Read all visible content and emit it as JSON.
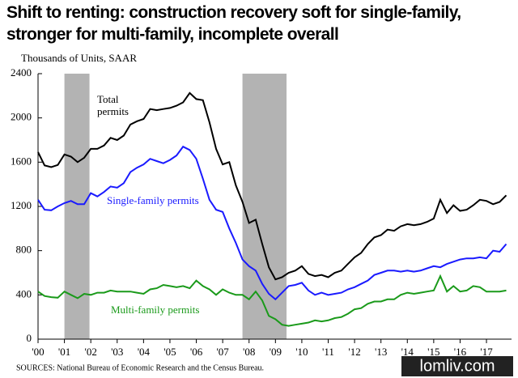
{
  "chart_data": {
    "type": "line",
    "title": "Shift to renting: construction recovery soft for single-family, stronger for multi-family, incomplete overall",
    "subtitle": "Thousands of Units, SAAR",
    "source": "SOURCES: National Bureau of Economic Research and the Census Bureau.",
    "watermark": "lomliv.com",
    "x": [
      2000,
      2000.25,
      2000.5,
      2000.75,
      2001,
      2001.25,
      2001.5,
      2001.75,
      2002,
      2002.25,
      2002.5,
      2002.75,
      2003,
      2003.25,
      2003.5,
      2003.75,
      2004,
      2004.25,
      2004.5,
      2004.75,
      2005,
      2005.25,
      2005.5,
      2005.75,
      2006,
      2006.25,
      2006.5,
      2006.75,
      2007,
      2007.25,
      2007.5,
      2007.75,
      2008,
      2008.25,
      2008.5,
      2008.75,
      2009,
      2009.25,
      2009.5,
      2009.75,
      2010,
      2010.25,
      2010.5,
      2010.75,
      2011,
      2011.25,
      2011.5,
      2011.75,
      2012,
      2012.25,
      2012.5,
      2012.75,
      2013,
      2013.25,
      2013.5,
      2013.75,
      2014,
      2014.25,
      2014.5,
      2014.75,
      2015,
      2015.25,
      2015.5,
      2015.75,
      2016,
      2016.25,
      2016.5,
      2016.75,
      2017,
      2017.25,
      2017.5,
      2017.75
    ],
    "series": [
      {
        "name": "Total permits",
        "color": "#000000",
        "values": [
          1690,
          1570,
          1555,
          1575,
          1670,
          1650,
          1600,
          1640,
          1720,
          1720,
          1750,
          1820,
          1800,
          1840,
          1940,
          1970,
          1990,
          2080,
          2070,
          2080,
          2090,
          2110,
          2140,
          2225,
          2170,
          2160,
          1960,
          1720,
          1580,
          1600,
          1390,
          1240,
          1050,
          1080,
          860,
          650,
          540,
          560,
          600,
          620,
          660,
          590,
          570,
          580,
          560,
          600,
          620,
          680,
          740,
          780,
          860,
          920,
          940,
          990,
          980,
          1020,
          1040,
          1030,
          1040,
          1060,
          1090,
          1260,
          1140,
          1210,
          1160,
          1170,
          1210,
          1260,
          1250,
          1220,
          1240,
          1300
        ]
      },
      {
        "name": "Single-family permits",
        "color": "#1a1aff",
        "values": [
          1260,
          1170,
          1165,
          1200,
          1230,
          1250,
          1220,
          1220,
          1320,
          1290,
          1330,
          1380,
          1370,
          1410,
          1510,
          1550,
          1580,
          1630,
          1610,
          1590,
          1620,
          1660,
          1740,
          1710,
          1630,
          1450,
          1260,
          1170,
          1150,
          1000,
          870,
          720,
          660,
          620,
          500,
          410,
          360,
          420,
          480,
          490,
          510,
          440,
          400,
          420,
          400,
          410,
          420,
          450,
          470,
          500,
          530,
          580,
          600,
          620,
          620,
          610,
          620,
          610,
          620,
          640,
          660,
          650,
          680,
          700,
          720,
          730,
          730,
          740,
          730,
          800,
          790,
          860
        ]
      },
      {
        "name": "Multi-family permits",
        "color": "#1a9a1a",
        "values": [
          430,
          390,
          380,
          375,
          430,
          400,
          370,
          410,
          400,
          420,
          420,
          440,
          430,
          430,
          430,
          420,
          410,
          450,
          460,
          490,
          480,
          470,
          480,
          460,
          530,
          480,
          450,
          400,
          450,
          420,
          400,
          400,
          360,
          430,
          350,
          210,
          180,
          130,
          120,
          130,
          140,
          150,
          170,
          160,
          170,
          190,
          200,
          230,
          270,
          280,
          320,
          340,
          340,
          360,
          360,
          400,
          420,
          410,
          420,
          430,
          440,
          570,
          430,
          480,
          430,
          440,
          480,
          470,
          430,
          430,
          430,
          440
        ]
      }
    ],
    "shaded_regions": [
      [
        2001.0,
        2001.95
      ],
      [
        2007.75,
        2009.42
      ]
    ],
    "xlim": [
      2000,
      2017.95
    ],
    "xticks": [
      {
        "value": 2000,
        "label": "'00"
      },
      {
        "value": 2001,
        "label": "'01"
      },
      {
        "value": 2002,
        "label": "'02"
      },
      {
        "value": 2003,
        "label": "'03"
      },
      {
        "value": 2004,
        "label": "'04"
      },
      {
        "value": 2005,
        "label": "'05"
      },
      {
        "value": 2006,
        "label": "'06"
      },
      {
        "value": 2007,
        "label": "'07"
      },
      {
        "value": 2008,
        "label": "'08"
      },
      {
        "value": 2009,
        "label": "'09"
      },
      {
        "value": 2010,
        "label": "'10"
      },
      {
        "value": 2011,
        "label": "'11"
      },
      {
        "value": 2012,
        "label": "'12"
      },
      {
        "value": 2013,
        "label": "'13"
      },
      {
        "value": 2014,
        "label": "'14"
      },
      {
        "value": 2015,
        "label": "'15"
      },
      {
        "value": 2016,
        "label": "'16"
      },
      {
        "value": 2017,
        "label": "'17"
      }
    ],
    "ylim": [
      0,
      2400
    ],
    "yticks": [
      0,
      400,
      800,
      1200,
      1600,
      2000,
      2400
    ],
    "grid": false,
    "shade_color": "#b3b3b3"
  }
}
